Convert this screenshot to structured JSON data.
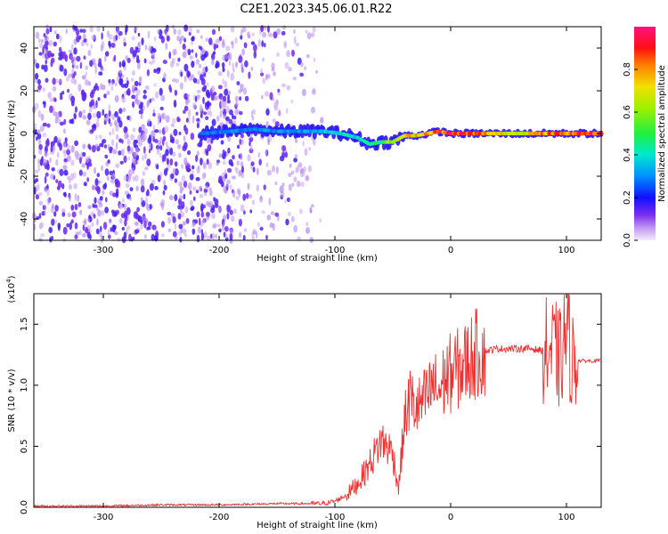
{
  "title": "C2E1.2023.345.06.01.R22",
  "chart_data": [
    {
      "type": "heatmap",
      "name": "spectrogram",
      "xlabel": "Height of straight line (km)",
      "ylabel": "Frequency (Hz)",
      "xlim": [
        -360,
        130
      ],
      "ylim": [
        -50,
        50
      ],
      "xticks": [
        -300,
        -200,
        -100,
        0,
        100
      ],
      "yticks": [
        -40,
        -20,
        0,
        20,
        40
      ],
      "colorbar": {
        "label": "Normalized spectral amplitude",
        "range": [
          0,
          1
        ],
        "ticks": [
          0.0,
          0.2,
          0.4,
          0.6,
          0.8
        ],
        "tick_labels": [
          "0.0",
          "0.2",
          "0.4",
          "0.6",
          "0.8"
        ]
      },
      "ridge": {
        "x": [
          -215,
          -190,
          -170,
          -150,
          -130,
          -110,
          -95,
          -80,
          -70,
          -60,
          -50,
          -40,
          -30,
          -20,
          -10,
          0,
          20,
          40,
          60,
          80,
          100,
          120,
          130
        ],
        "freq": [
          0,
          1,
          2,
          1,
          1,
          1,
          0,
          -2,
          -5,
          -4,
          -4,
          -1,
          -1,
          0,
          1,
          0,
          0,
          0,
          0,
          0,
          0,
          0,
          0
        ],
        "amplitude": [
          0.25,
          0.3,
          0.3,
          0.3,
          0.3,
          0.35,
          0.4,
          0.4,
          0.45,
          0.5,
          0.6,
          0.7,
          0.75,
          0.8,
          0.85,
          0.9,
          0.85,
          0.7,
          0.7,
          0.8,
          0.85,
          0.9,
          0.9
        ]
      },
      "noise_band": {
        "x_start": -360,
        "x_end": -110,
        "amplitude": 0.1
      }
    },
    {
      "type": "line",
      "name": "snr",
      "xlabel": "Height of straight line (km)",
      "ylabel": "SNR (10 * v/v)",
      "y_multiplier": "(x10",
      "y_multiplier_exp": "4",
      "y_multiplier_close": ")",
      "xlim": [
        -360,
        130
      ],
      "ylim": [
        0,
        1.75
      ],
      "xticks": [
        -300,
        -200,
        -100,
        0,
        100
      ],
      "yticks": [
        0.0,
        0.5,
        1.0,
        1.5
      ],
      "ytick_labels": [
        "0.0",
        "0.5",
        "1.0",
        "1.5"
      ],
      "color": "#f03030",
      "series": {
        "x": [
          -360,
          -300,
          -250,
          -200,
          -150,
          -110,
          -100,
          -90,
          -80,
          -70,
          -60,
          -50,
          -45,
          -40,
          -35,
          -30,
          -25,
          -20,
          -15,
          -10,
          -5,
          0,
          10,
          20,
          30,
          40,
          50,
          60,
          70,
          80,
          90,
          95,
          100,
          105,
          110,
          120,
          130
        ],
        "y": [
          0.01,
          0.01,
          0.02,
          0.02,
          0.03,
          0.03,
          0.05,
          0.1,
          0.2,
          0.35,
          0.55,
          0.45,
          0.15,
          0.7,
          0.9,
          0.8,
          0.85,
          0.9,
          1.0,
          0.95,
          1.05,
          1.1,
          1.15,
          1.25,
          1.28,
          1.3,
          1.3,
          1.3,
          1.3,
          1.28,
          1.27,
          1.2,
          1.45,
          1.2,
          1.2,
          1.2,
          1.2
        ]
      }
    }
  ]
}
